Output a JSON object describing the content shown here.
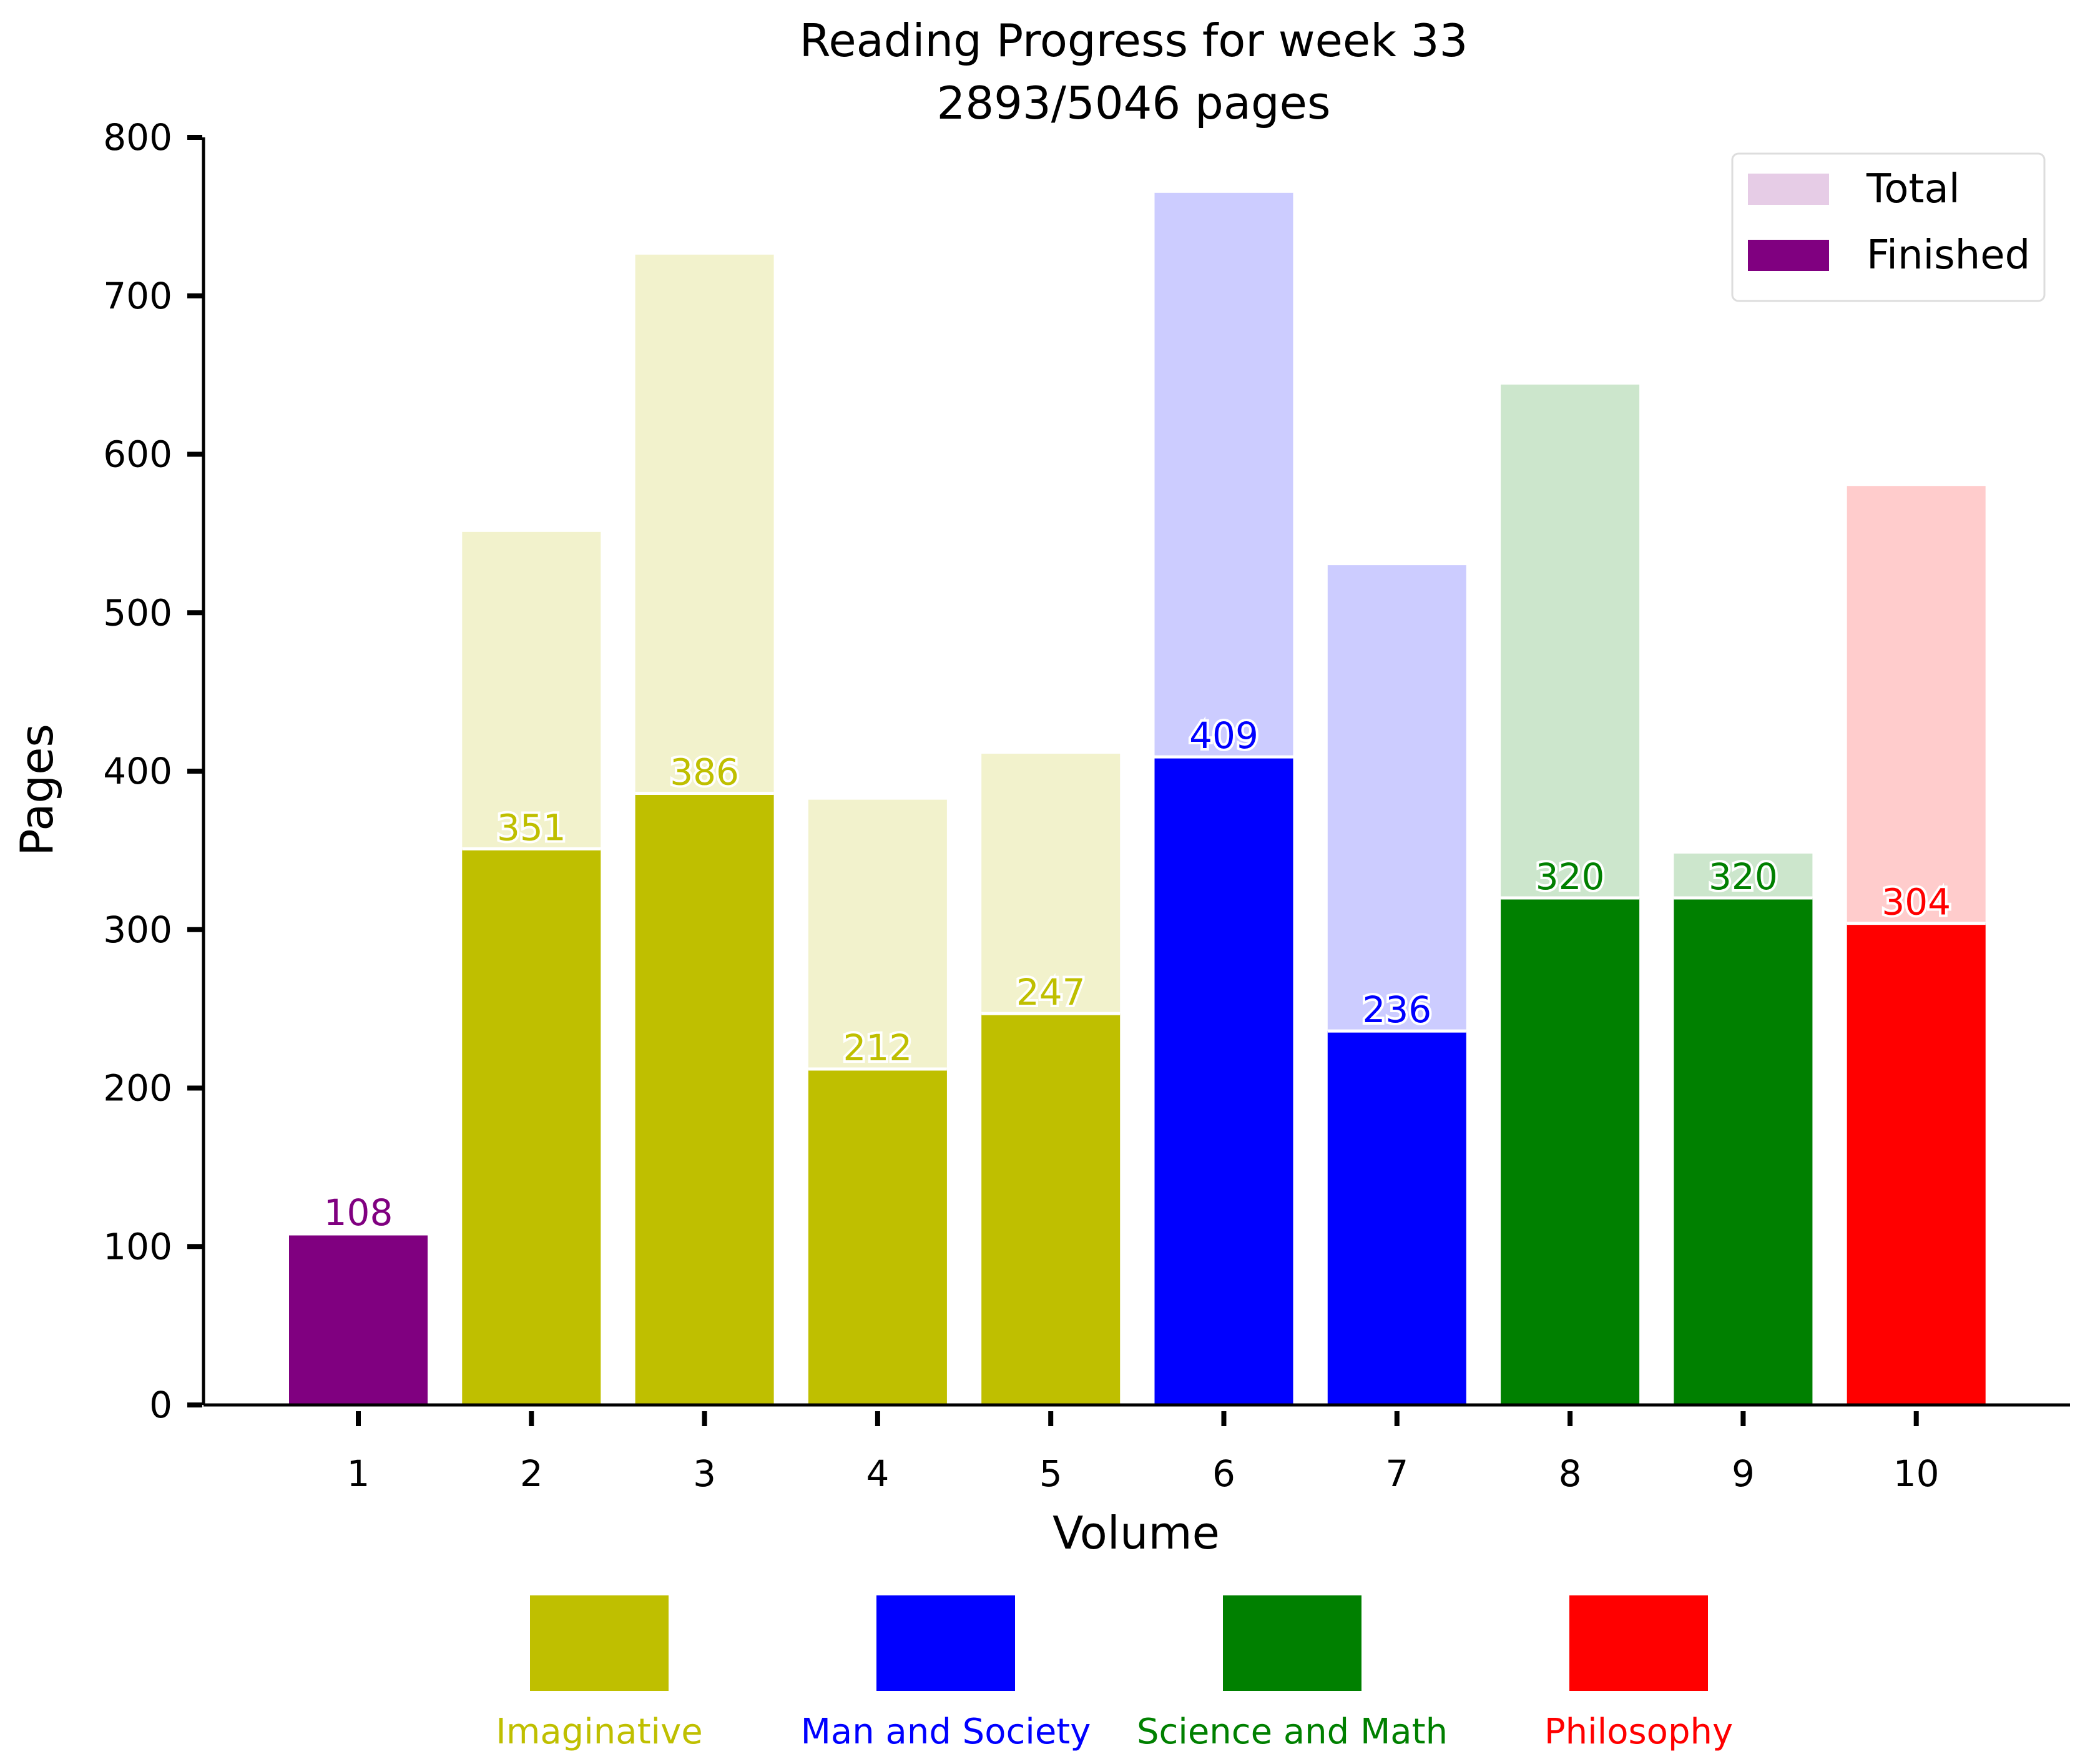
{
  "chart_data": {
    "type": "bar",
    "title": "Reading Progress for week 33",
    "subtitle": "2893/5046 pages",
    "xlabel": "Volume",
    "ylabel": "Pages",
    "ylim": [
      0,
      800
    ],
    "yticks": [
      0,
      100,
      200,
      300,
      400,
      500,
      600,
      700,
      800
    ],
    "categories": [
      "1",
      "2",
      "3",
      "4",
      "5",
      "6",
      "7",
      "8",
      "9",
      "10"
    ],
    "series": [
      {
        "name": "Total",
        "values": [
          108,
          551,
          726,
          382,
          411,
          765,
          530,
          644,
          348,
          580
        ]
      },
      {
        "name": "Finished",
        "values": [
          108,
          351,
          386,
          212,
          247,
          409,
          236,
          320,
          320,
          304
        ]
      }
    ],
    "bar_groups": [
      "none",
      "Imaginative",
      "Imaginative",
      "Imaginative",
      "Imaginative",
      "Man and Society",
      "Man and Society",
      "Science and Math",
      "Science and Math",
      "Philosophy"
    ],
    "legend": {
      "placement": "top-right",
      "entries": [
        {
          "label": "Total",
          "color": "#e6cce6"
        },
        {
          "label": "Finished",
          "color": "#800080"
        }
      ]
    },
    "category_legend": [
      {
        "label": "Imaginative",
        "color": "#bfbf00",
        "light_color": "#f2f2cc"
      },
      {
        "label": "Man and Society",
        "color": "#0000ff",
        "light_color": "#ccccff"
      },
      {
        "label": "Science and Math",
        "color": "#008000",
        "light_color": "#cce6cc"
      },
      {
        "label": "Philosophy",
        "color": "#ff0000",
        "light_color": "#ffcccc"
      }
    ],
    "default_color": "#800080",
    "grid": false
  }
}
